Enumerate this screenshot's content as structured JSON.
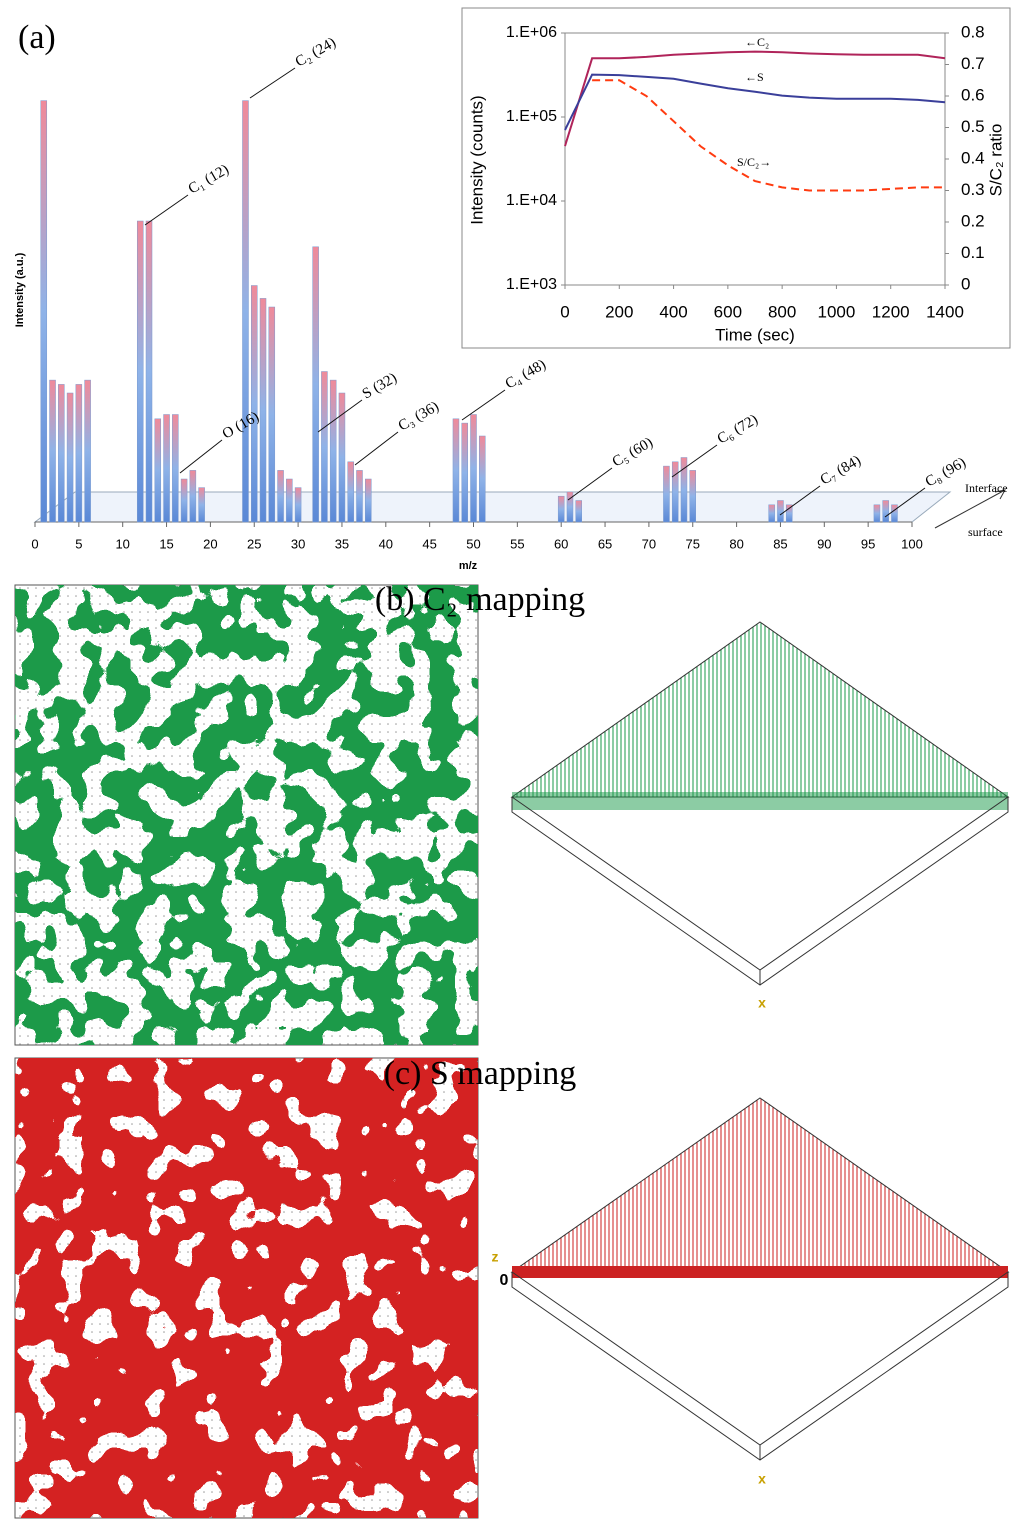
{
  "chart_data": [
    {
      "type": "bar",
      "y_label": "Intensity (a.u.)",
      "x_label": "m/z",
      "xlim": [
        0,
        100
      ],
      "xticks": [
        0,
        5,
        10,
        15,
        20,
        25,
        30,
        35,
        40,
        45,
        50,
        55,
        60,
        65,
        70,
        75,
        80,
        85,
        90,
        95,
        100
      ],
      "ylim": [
        0,
        100
      ],
      "x": [
        1,
        2,
        3,
        4,
        5,
        6,
        12,
        13,
        14,
        15,
        16,
        17,
        18,
        19,
        24,
        25,
        26,
        27,
        28,
        29,
        30,
        32,
        33,
        34,
        35,
        36,
        37,
        38,
        48,
        49,
        50,
        51,
        60,
        61,
        62,
        72,
        73,
        74,
        75,
        84,
        85,
        86,
        96,
        97,
        98
      ],
      "values": [
        98,
        33,
        32,
        30,
        32,
        33,
        70,
        70,
        24,
        25,
        25,
        10,
        12,
        8,
        98,
        55,
        52,
        50,
        12,
        10,
        8,
        64,
        35,
        33,
        30,
        14,
        12,
        10,
        24,
        23,
        25,
        20,
        6,
        7,
        5,
        13,
        14,
        15,
        12,
        4,
        5,
        4,
        4,
        5,
        4
      ],
      "annotations": [
        "C₁ (12)",
        "C₂ (24)",
        "O (16)",
        "S (32)",
        "C₃ (36)",
        "C₄ (48)",
        "C₅ (60)",
        "C₆ (72)",
        "C₇ (84)",
        "C₈ (96)"
      ],
      "depth_labels": [
        "Interface",
        "surface"
      ]
    },
    {
      "type": "line",
      "x_label": "Time (sec)",
      "y_label": "Intensity (counts)",
      "y2_label": "S/C₂ ratio",
      "log_y": true,
      "xlim": [
        0,
        1400
      ],
      "xticks": [
        0,
        200,
        400,
        600,
        800,
        1000,
        1200,
        1400
      ],
      "ylim": [
        1000,
        1000000
      ],
      "yticks": [
        {
          "value": 1000,
          "label": "1.E+03"
        },
        {
          "value": 10000,
          "label": "1.E+04"
        },
        {
          "value": 100000,
          "label": "1.E+05"
        },
        {
          "value": 1000000,
          "label": "1.E+06"
        }
      ],
      "y2lim": [
        0,
        0.8
      ],
      "y2ticks": [
        0,
        0.1,
        0.2,
        0.3,
        0.4,
        0.5,
        0.6,
        0.7,
        0.8
      ],
      "x": [
        0,
        100,
        200,
        300,
        400,
        500,
        600,
        700,
        800,
        900,
        1000,
        1100,
        1200,
        1300,
        1400
      ],
      "series": [
        {
          "name": "←C₂",
          "color": "#b0245a",
          "values": [
            45000,
            500000,
            500000,
            520000,
            550000,
            570000,
            590000,
            600000,
            590000,
            570000,
            560000,
            550000,
            550000,
            550000,
            500000
          ]
        },
        {
          "name": "←S",
          "color": "#3a3f9a",
          "values": [
            70000,
            320000,
            315000,
            300000,
            285000,
            250000,
            220000,
            200000,
            180000,
            170000,
            165000,
            165000,
            165000,
            160000,
            150000
          ]
        },
        {
          "name": "S/C₂→",
          "color": "#ff3b10",
          "dashed": true,
          "axis": "y2",
          "values": [
            null,
            0.65,
            0.65,
            0.6,
            0.52,
            0.44,
            0.38,
            0.33,
            0.31,
            0.3,
            0.3,
            0.3,
            0.305,
            0.31,
            0.31
          ]
        }
      ]
    }
  ],
  "panels": {
    "a": {
      "label": "(a)"
    },
    "b": {
      "title": "(b) C₂ mapping",
      "axis_x": "x"
    },
    "c": {
      "title": "(c) S mapping",
      "axis_x": "x",
      "axis_z": "z",
      "origin": "0"
    }
  }
}
